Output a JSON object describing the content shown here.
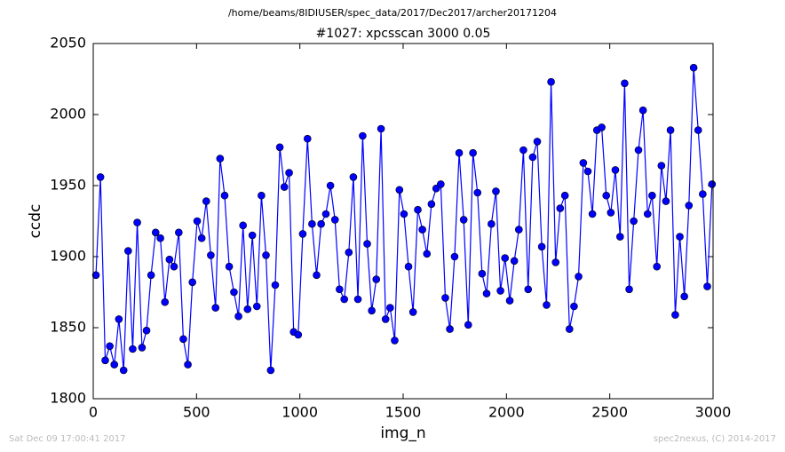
{
  "header": "/home/beams/8IDIUSER/spec_data/2017/Dec2017/archer20171204",
  "footer": {
    "left": "Sat Dec 09 17:00:41 2017",
    "right": "spec2nexus, (C) 2014-2017"
  },
  "chart_data": {
    "type": "line",
    "title": "#1027: xpcsscan 3000 0.05",
    "x_label": "img_n",
    "y_label": "ccdc",
    "xlim": [
      0,
      3000
    ],
    "xticks": [
      0,
      500,
      1000,
      1500,
      2000,
      2500,
      3000
    ],
    "ylim": [
      1800,
      2050
    ],
    "yticks": [
      1800,
      1850,
      1900,
      1950,
      2000,
      2050
    ],
    "series": [
      {
        "name": "ccdc",
        "color": "#0000ff",
        "x": [
          13,
          35,
          58,
          80,
          102,
          124,
          147,
          169,
          191,
          213,
          236,
          258,
          280,
          302,
          325,
          347,
          369,
          391,
          414,
          436,
          458,
          480,
          503,
          525,
          547,
          569,
          592,
          614,
          636,
          658,
          681,
          703,
          725,
          747,
          770,
          792,
          814,
          836,
          859,
          881,
          903,
          925,
          948,
          970,
          992,
          1014,
          1037,
          1059,
          1081,
          1103,
          1126,
          1148,
          1170,
          1192,
          1215,
          1237,
          1259,
          1281,
          1304,
          1326,
          1348,
          1370,
          1393,
          1415,
          1437,
          1459,
          1482,
          1504,
          1526,
          1548,
          1571,
          1593,
          1615,
          1637,
          1660,
          1682,
          1704,
          1726,
          1749,
          1771,
          1793,
          1815,
          1838,
          1860,
          1882,
          1904,
          1927,
          1949,
          1971,
          1993,
          2016,
          2038,
          2060,
          2082,
          2105,
          2127,
          2149,
          2171,
          2194,
          2216,
          2238,
          2260,
          2283,
          2305,
          2327,
          2349,
          2372,
          2394,
          2416,
          2438,
          2461,
          2483,
          2505,
          2527,
          2550,
          2572,
          2594,
          2616,
          2639,
          2661,
          2683,
          2705,
          2728,
          2750,
          2772,
          2794,
          2817,
          2839,
          2861,
          2883,
          2906,
          2928,
          2950,
          2972,
          2995
        ],
        "values": [
          1887,
          1956,
          1827,
          1837,
          1824,
          1856,
          1820,
          1904,
          1835,
          1924,
          1836,
          1848,
          1887,
          1917,
          1913,
          1868,
          1898,
          1893,
          1917,
          1842,
          1824,
          1882,
          1925,
          1913,
          1939,
          1901,
          1864,
          1969,
          1943,
          1893,
          1875,
          1858,
          1922,
          1863,
          1915,
          1865,
          1943,
          1901,
          1820,
          1880,
          1977,
          1949,
          1959,
          1847,
          1845,
          1916,
          1983,
          1923,
          1887,
          1923,
          1930,
          1950,
          1926,
          1877,
          1870,
          1903,
          1956,
          1870,
          1985,
          1909,
          1862,
          1884,
          1990,
          1856,
          1864,
          1841,
          1947,
          1930,
          1893,
          1861,
          1933,
          1919,
          1902,
          1937,
          1948,
          1951,
          1871,
          1849,
          1900,
          1973,
          1926,
          1852,
          1973,
          1945,
          1888,
          1874,
          1923,
          1946,
          1876,
          1899,
          1869,
          1897,
          1919,
          1975,
          1877,
          1970,
          1981,
          1907,
          1866,
          2023,
          1896,
          1934,
          1943,
          1849,
          1865,
          1886,
          1966,
          1960,
          1930,
          1989,
          1991,
          1943,
          1931,
          1961,
          1914,
          2022,
          1877,
          1925,
          1975,
          2003,
          1930,
          1943,
          1893,
          1964,
          1939,
          1989,
          1859,
          1914,
          1872,
          1936,
          2033,
          1989,
          1944,
          1879,
          1951
        ]
      }
    ]
  }
}
